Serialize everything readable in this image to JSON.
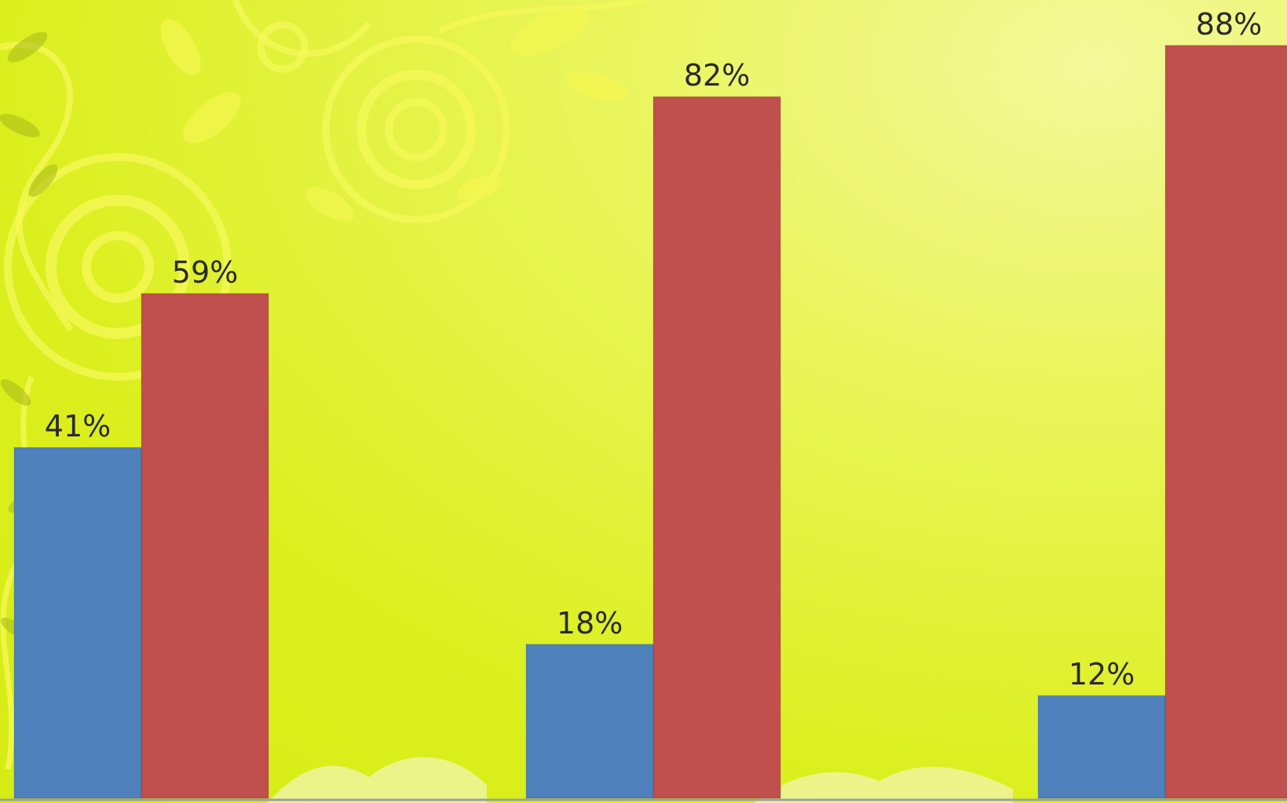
{
  "chart_data": {
    "type": "bar",
    "categories": [
      "",
      "",
      ""
    ],
    "series": [
      {
        "values": [
          41,
          18,
          12
        ],
        "color": "#4f81bd"
      },
      {
        "values": [
          59,
          82,
          88
        ],
        "color": "#c0504d"
      }
    ],
    "data_labels": [
      [
        "41%",
        "18%",
        "12%"
      ],
      [
        "59%",
        "82%",
        "88%"
      ]
    ],
    "ylim": [
      0,
      100
    ],
    "grid": false,
    "legend": "none",
    "background": "#dcef1e"
  }
}
